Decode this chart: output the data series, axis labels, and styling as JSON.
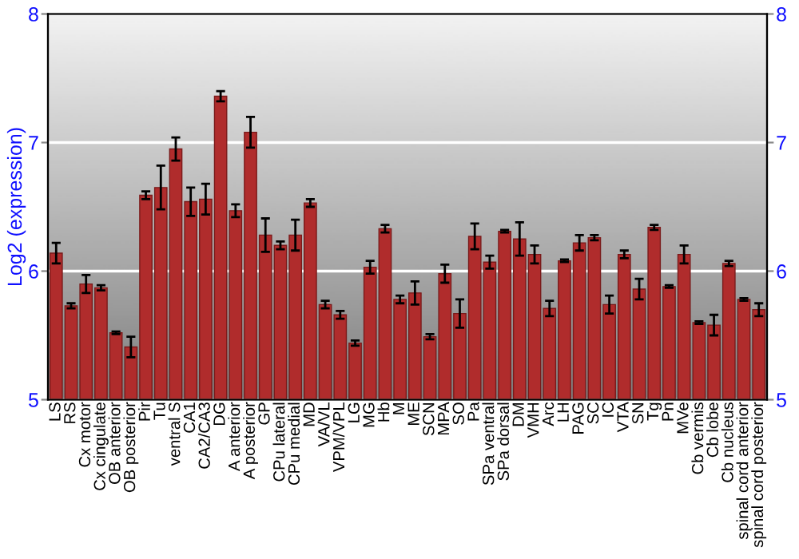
{
  "chart_data": {
    "type": "bar",
    "ylabel": "Log2 (expression)",
    "categories": [
      "LS",
      "RS",
      "Cx motor",
      "Cx cingulate",
      "OB anterior",
      "OB posterior",
      "Pir",
      "Tu",
      "ventral S",
      "CA1",
      "CA2/CA3",
      "DG",
      "A anterior",
      "A posterior",
      "GP",
      "CPu lateral",
      "CPu medial",
      "MD",
      "VA/VL",
      "VPM/VPL",
      "LG",
      "MG",
      "Hb",
      "M",
      "ME",
      "SCN",
      "MPA",
      "SO",
      "Pa",
      "SPa ventral",
      "SPa dorsal",
      "DM",
      "VMH",
      "Arc",
      "LH",
      "PAG",
      "SC",
      "IC",
      "VTA",
      "SN",
      "Tg",
      "Pn",
      "MVe",
      "Cb vermis",
      "Cb lobe",
      "Cb nucleus",
      "spinal cord anterior",
      "spinal cord posterior"
    ],
    "values": [
      6.14,
      5.73,
      5.9,
      5.87,
      5.52,
      5.41,
      6.59,
      6.65,
      6.95,
      6.54,
      6.56,
      7.36,
      6.47,
      7.08,
      6.28,
      6.2,
      6.28,
      6.53,
      5.74,
      5.66,
      5.44,
      6.03,
      6.33,
      5.78,
      5.83,
      5.49,
      5.98,
      5.67,
      6.27,
      6.07,
      6.31,
      6.25,
      6.13,
      5.71,
      6.08,
      6.22,
      6.26,
      5.74,
      6.13,
      5.86,
      6.34,
      5.88,
      6.13,
      5.6,
      5.58,
      6.06,
      5.78,
      5.7
    ],
    "errors": [
      0.08,
      0.02,
      0.07,
      0.02,
      0.01,
      0.08,
      0.03,
      0.17,
      0.09,
      0.11,
      0.12,
      0.04,
      0.05,
      0.12,
      0.13,
      0.03,
      0.12,
      0.03,
      0.03,
      0.03,
      0.02,
      0.05,
      0.03,
      0.03,
      0.09,
      0.02,
      0.07,
      0.11,
      0.1,
      0.05,
      0.01,
      0.13,
      0.07,
      0.06,
      0.01,
      0.06,
      0.02,
      0.07,
      0.03,
      0.08,
      0.02,
      0.01,
      0.07,
      0.01,
      0.08,
      0.02,
      0.01,
      0.05
    ],
    "color": "#b02c2c",
    "ylim": [
      5,
      8
    ],
    "yticks": [
      5,
      6,
      7,
      8
    ],
    "y2lim": [
      5,
      8
    ],
    "y2ticks": [
      5,
      6,
      7,
      8
    ],
    "grid": "y",
    "legend": false
  }
}
